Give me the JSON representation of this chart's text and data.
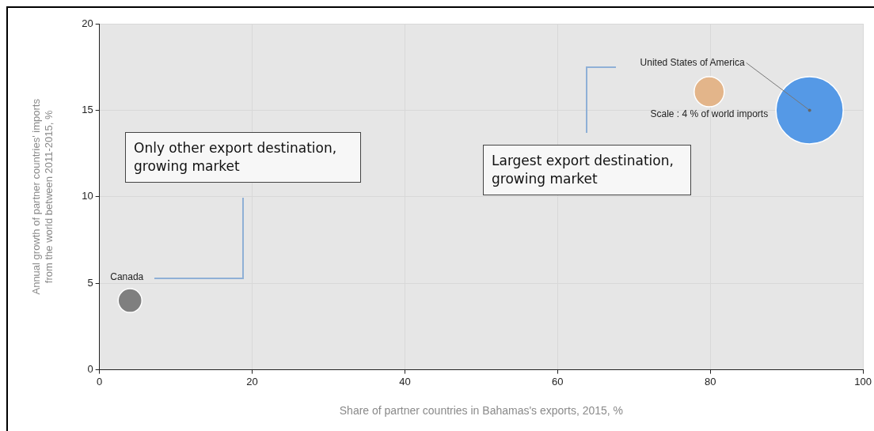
{
  "chart_data": {
    "type": "bubble",
    "xlabel": "Share of partner countries in Bahamas's exports, 2015, %",
    "ylabel": "Annual growth of partner countries' imports from the world between 2011-2015, %",
    "series": [
      {
        "name": "Canada",
        "color": "#7f7f7f",
        "x": [
          4
        ],
        "values": [
          4
        ],
        "sizes": [
          2.5
        ]
      },
      {
        "name": "United States of America",
        "color": "#5599e6",
        "x": [
          93
        ],
        "values": [
          15
        ],
        "sizes": [
          20
        ]
      }
    ],
    "size_legend": [
      {
        "value": 4,
        "label": "Scale : 4 % of world imports"
      }
    ],
    "xlim": [
      0,
      100
    ],
    "xticks": [
      0,
      20,
      40,
      60,
      80,
      100
    ],
    "ylim": [
      0,
      20
    ],
    "yticks": [
      0,
      5,
      10,
      15,
      20
    ],
    "grid": true,
    "legend": false,
    "annotations": [
      "Only other export destination, growing market",
      "Largest export destination, growing market"
    ]
  }
}
